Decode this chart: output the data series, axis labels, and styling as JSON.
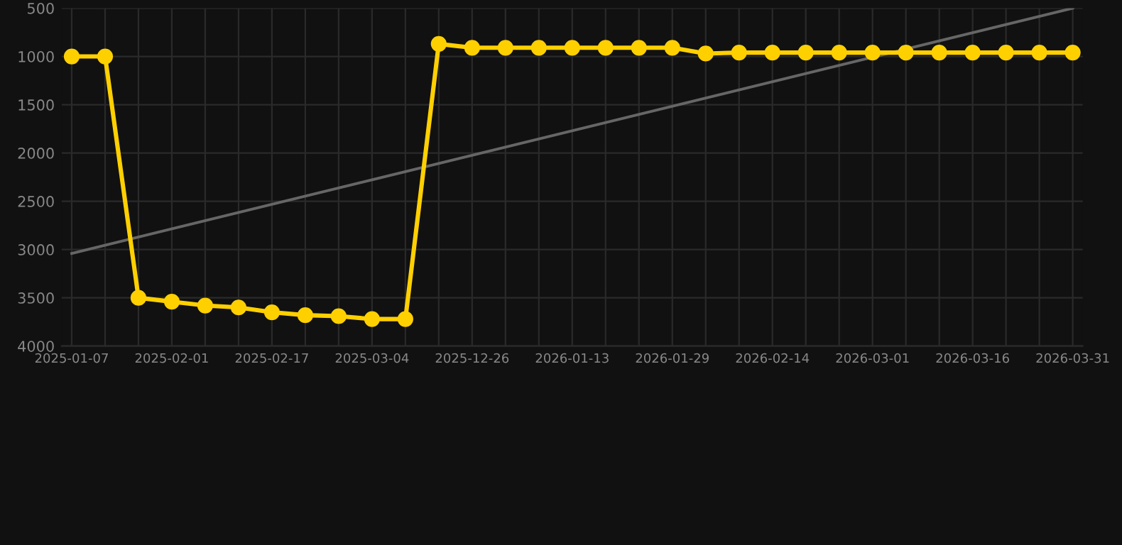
{
  "chart_data": {
    "type": "line",
    "categories": [
      "2025-01-07",
      null,
      null,
      "2025-02-01",
      null,
      null,
      "2025-02-17",
      null,
      null,
      "2025-03-04",
      null,
      null,
      "2025-12-26",
      null,
      null,
      "2026-01-13",
      null,
      null,
      "2026-01-29",
      null,
      null,
      "2026-02-14",
      null,
      null,
      "2026-03-01",
      null,
      null,
      "2026-03-16",
      null,
      null,
      "2026-03-31"
    ],
    "series": [
      {
        "color": "#ffd000",
        "marker": "circle",
        "values": [
          1000,
          1000,
          3500,
          3540,
          3580,
          3600,
          3650,
          3680,
          3690,
          3720,
          3720,
          870,
          910,
          910,
          910,
          910,
          910,
          910,
          910,
          970,
          960,
          960,
          960,
          960,
          960,
          960,
          960,
          960,
          960,
          960,
          960
        ]
      },
      {
        "type": "line",
        "color": "#666666",
        "marker": "none",
        "values": [
          3040,
          null,
          null,
          null,
          null,
          null,
          null,
          null,
          null,
          null,
          null,
          null,
          null,
          null,
          null,
          null,
          null,
          null,
          null,
          null,
          null,
          null,
          null,
          null,
          null,
          null,
          null,
          null,
          null,
          null,
          500
        ]
      }
    ],
    "ylim": [
      4000,
      500
    ],
    "yticks": [
      500,
      1000,
      1500,
      2000,
      2500,
      3000,
      3500,
      4000
    ],
    "grid": true,
    "line_style": "solid"
  }
}
